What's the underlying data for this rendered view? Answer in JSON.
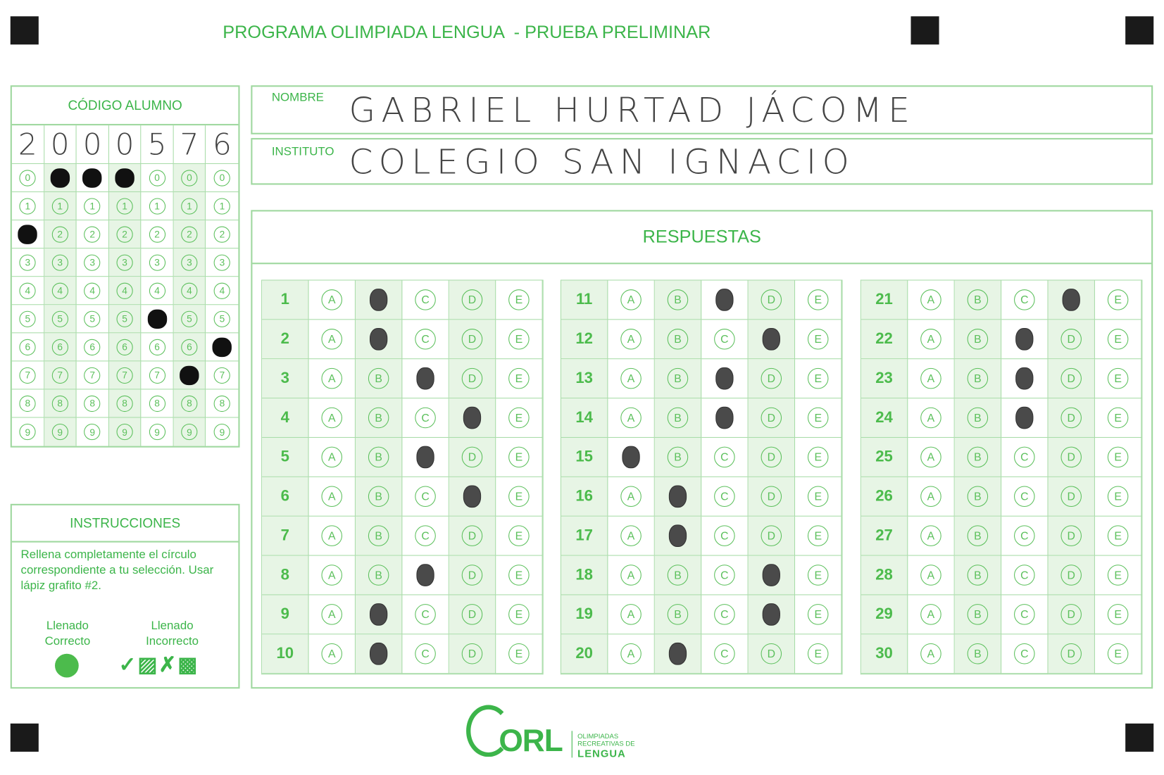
{
  "title": "PROGRAMA OLIMPIADA LENGUA  - PRUEBA PRELIMINAR",
  "code": {
    "header": "CÓDIGO ALUMNO",
    "handwritten": [
      "2",
      "0",
      "0",
      "0",
      "5",
      "7",
      "6"
    ],
    "digits": [
      "0",
      "1",
      "2",
      "3",
      "4",
      "5",
      "6",
      "7",
      "8",
      "9"
    ],
    "filled": [
      2,
      0,
      0,
      0,
      5,
      7,
      6
    ]
  },
  "nombre": {
    "label": "NOMBRE",
    "value": "GABRIEL HURTAD JÁCOME"
  },
  "instituto": {
    "label": "INSTITUTO",
    "value": "COLEGIO SAN IGNACIO"
  },
  "respuestas": {
    "header": "RESPUESTAS",
    "options": [
      "A",
      "B",
      "C",
      "D",
      "E"
    ],
    "answers": [
      "B",
      "B",
      "C",
      "D",
      "C",
      "D",
      null,
      "C",
      "B",
      "B",
      "C",
      "D",
      "C",
      "C",
      "A",
      "B",
      "B",
      "D",
      "D",
      "B",
      "D",
      "C",
      "C",
      "C",
      null,
      null,
      null,
      null,
      null,
      null
    ]
  },
  "instrucciones": {
    "header": "INSTRUCCIONES",
    "text": "Rellena completamente el círculo correspondiente a tu selección. Usar lápiz grafito #2.",
    "correct": "Llenado Correcto",
    "incorrect": "Llenado Incorrecto"
  },
  "logo": {
    "mark": "ORL",
    "line1": "OLIMPIADAS",
    "line2": "RECREATIVAS DE",
    "line3": "LENGUA"
  },
  "colors": {
    "accent": "#3cb54a",
    "shade": "#e7f5e5"
  }
}
